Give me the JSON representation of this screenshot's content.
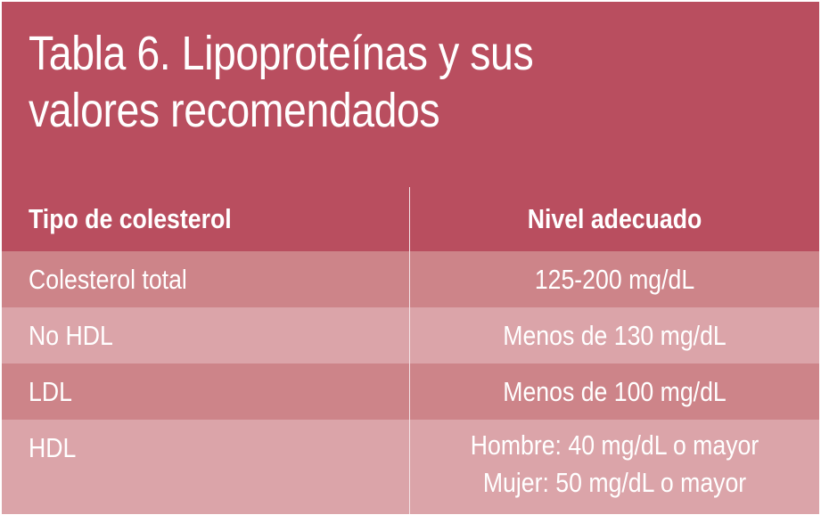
{
  "table": {
    "title_line1": "Tabla 6. Lipoproteínas y sus",
    "title_line2": "valores recomendados",
    "header_col1": "Tipo de colesterol",
    "header_col2": "Nivel adecuado",
    "rows": [
      {
        "tipo": "Colesterol total",
        "nivel": "125-200 mg/dL"
      },
      {
        "tipo": "No HDL",
        "nivel": "Menos de 130 mg/dL"
      },
      {
        "tipo": "LDL",
        "nivel": "Menos de 100 mg/dL"
      },
      {
        "tipo": "HDL",
        "nivel_line1": "Hombre: 40 mg/dL o mayor",
        "nivel_line2": "Mujer: 50 mg/dL o mayor"
      }
    ]
  },
  "colors": {
    "header_background": "#b94e5f",
    "row_dark": "#cd8489",
    "row_light": "#dba4a9",
    "text": "#ffffff"
  }
}
